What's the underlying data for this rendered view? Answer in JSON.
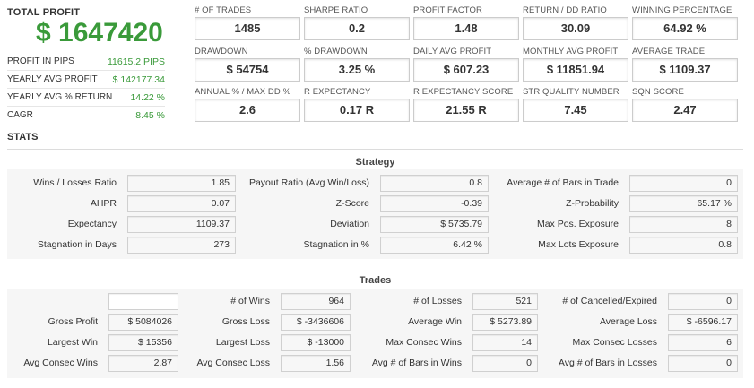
{
  "left_panel": {
    "total_profit_label": "TOTAL PROFIT",
    "total_profit_value": "$ 1647420",
    "rows": [
      {
        "label": "PROFIT IN PIPS",
        "value": "11615.2 PIPS"
      },
      {
        "label": "YEARLY AVG PROFIT",
        "value": "$ 142177.34"
      },
      {
        "label": "YEARLY AVG % RETURN",
        "value": "14.22 %"
      },
      {
        "label": "CAGR",
        "value": "8.45 %"
      }
    ]
  },
  "kpis": [
    {
      "label": "# OF TRADES",
      "value": "1485"
    },
    {
      "label": "SHARPE RATIO",
      "value": "0.2"
    },
    {
      "label": "PROFIT FACTOR",
      "value": "1.48"
    },
    {
      "label": "RETURN / DD RATIO",
      "value": "30.09"
    },
    {
      "label": "WINNING PERCENTAGE",
      "value": "64.92 %"
    },
    {
      "label": "DRAWDOWN",
      "value": "$ 54754"
    },
    {
      "label": "% DRAWDOWN",
      "value": "3.25 %"
    },
    {
      "label": "DAILY AVG PROFIT",
      "value": "$ 607.23"
    },
    {
      "label": "MONTHLY AVG PROFIT",
      "value": "$ 11851.94"
    },
    {
      "label": "AVERAGE TRADE",
      "value": "$ 1109.37"
    },
    {
      "label": "ANNUAL % / MAX DD %",
      "value": "2.6"
    },
    {
      "label": "R EXPECTANCY",
      "value": "0.17 R"
    },
    {
      "label": "R EXPECTANCY SCORE",
      "value": "21.55 R"
    },
    {
      "label": "STR QUALITY NUMBER",
      "value": "7.45"
    },
    {
      "label": "SQN SCORE",
      "value": "2.47"
    }
  ],
  "stats": {
    "title": "STATS",
    "strategy": {
      "title": "Strategy",
      "rows": [
        [
          {
            "label": "Wins / Losses Ratio",
            "value": "1.85"
          },
          {
            "label": "Payout Ratio (Avg Win/Loss)",
            "value": "0.8"
          },
          {
            "label": "Average # of Bars in Trade",
            "value": "0"
          }
        ],
        [
          {
            "label": "AHPR",
            "value": "0.07"
          },
          {
            "label": "Z-Score",
            "value": "-0.39"
          },
          {
            "label": "Z-Probability",
            "value": "65.17 %"
          }
        ],
        [
          {
            "label": "Expectancy",
            "value": "1109.37"
          },
          {
            "label": "Deviation",
            "value": "$ 5735.79"
          },
          {
            "label": "Max Pos. Exposure",
            "value": "8"
          }
        ],
        [
          {
            "label": "Stagnation in Days",
            "value": "273"
          },
          {
            "label": "Stagnation in %",
            "value": "6.42 %"
          },
          {
            "label": "Max Lots Exposure",
            "value": "0.8"
          }
        ]
      ]
    },
    "trades": {
      "title": "Trades",
      "rows": [
        [
          {
            "label": "",
            "value": ""
          },
          {
            "label": "# of Wins",
            "value": "964"
          },
          {
            "label": "# of Losses",
            "value": "521"
          },
          {
            "label": "# of Cancelled/Expired",
            "value": "0"
          }
        ],
        [
          {
            "label": "Gross Profit",
            "value": "$ 5084026"
          },
          {
            "label": "Gross Loss",
            "value": "$ -3436606"
          },
          {
            "label": "Average Win",
            "value": "$ 5273.89"
          },
          {
            "label": "Average Loss",
            "value": "$ -6596.17"
          }
        ],
        [
          {
            "label": "Largest Win",
            "value": "$ 15356"
          },
          {
            "label": "Largest Loss",
            "value": "$ -13000"
          },
          {
            "label": "Max Consec Wins",
            "value": "14"
          },
          {
            "label": "Max Consec Losses",
            "value": "6"
          }
        ],
        [
          {
            "label": "Avg Consec Wins",
            "value": "2.87"
          },
          {
            "label": "Avg Consec Loss",
            "value": "1.56"
          },
          {
            "label": "Avg # of Bars in Wins",
            "value": "0"
          },
          {
            "label": "Avg # of Bars in Losses",
            "value": "0"
          }
        ]
      ]
    }
  }
}
